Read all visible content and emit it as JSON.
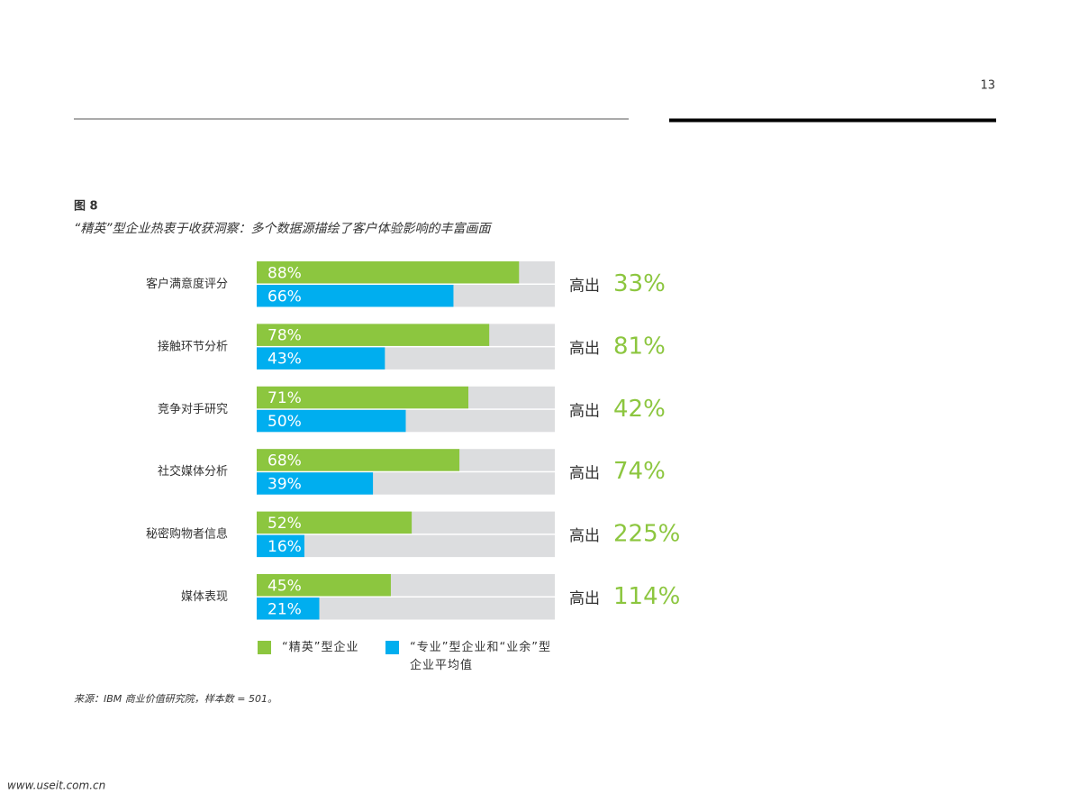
{
  "page_number": "13",
  "source": "来源：IBM 商业价值研究院，样本数 = 501。",
  "watermark": "www.useit.com.cn",
  "chart_data": {
    "type": "bar",
    "orientation": "horizontal",
    "title": "图 8",
    "subtitle": "“精英”型企业热衷于收获洞察：多个数据源描绘了客户体验影响的丰富画面",
    "categories": [
      "客户满意度评分",
      "接触环节分析",
      "竞争对手研究",
      "社交媒体分析",
      "秘密购物者信息",
      "媒体表现"
    ],
    "xlim": [
      0,
      100
    ],
    "track_color": "#dcdddf",
    "series": [
      {
        "name": "“精英”型企业",
        "color": "#8cc63f",
        "values": [
          88,
          78,
          71,
          68,
          52,
          45
        ],
        "value_labels": [
          "88%",
          "78%",
          "71%",
          "68%",
          "52%",
          "45%"
        ]
      },
      {
        "name": "“专业”型企业和“业余”型企业平均值",
        "color": "#00aeef",
        "values": [
          66,
          43,
          50,
          39,
          16,
          21
        ],
        "value_labels": [
          "66%",
          "43%",
          "50%",
          "39%",
          "16%",
          "21%"
        ]
      }
    ],
    "comparison": {
      "prefix": "高出",
      "color": "#8cc63f",
      "values": [
        33,
        81,
        42,
        74,
        225,
        114
      ],
      "value_labels": [
        "33%",
        "81%",
        "42%",
        "74%",
        "225%",
        "114%"
      ]
    }
  }
}
